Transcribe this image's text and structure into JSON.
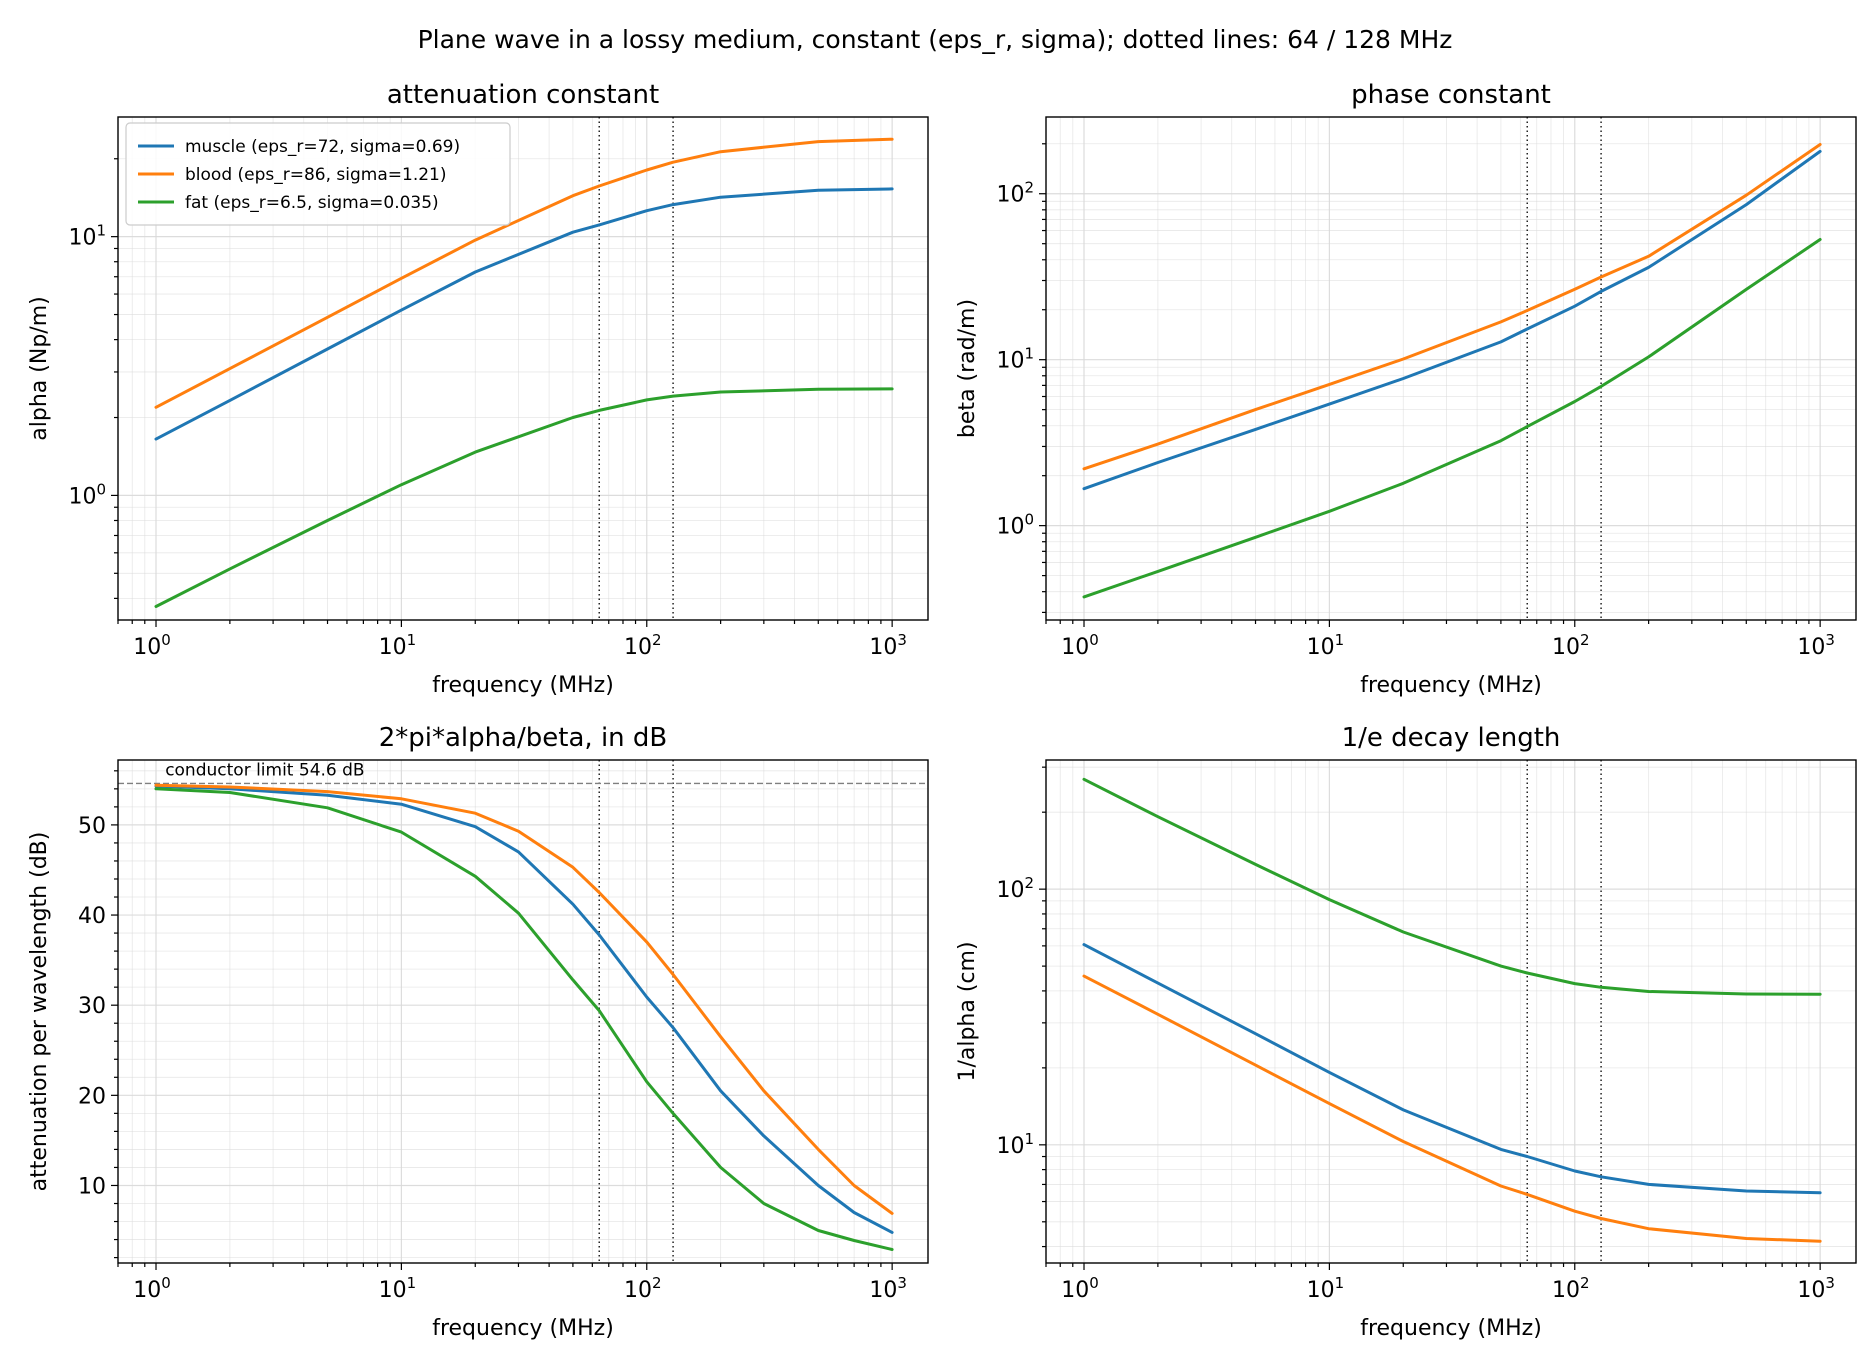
{
  "figure": {
    "suptitle": "Plane wave in a lossy medium, constant (eps_r, sigma); dotted lines: 64 / 128 MHz"
  },
  "colors": {
    "muscle": "#1f77b4",
    "blood": "#ff7f0e",
    "fat": "#2ca02c",
    "grid": "#d9d9d9",
    "ref_line": "#000000",
    "limit_line": "#7f7f7f"
  },
  "chart_data": [
    {
      "id": "attenuation",
      "type": "line",
      "title": "attenuation constant",
      "xlabel": "frequency (MHz)",
      "ylabel": "alpha (Np/m)",
      "xscale": "log",
      "yscale": "log",
      "xlim": [
        0.7,
        1400
      ],
      "ylim": [
        0.33,
        29
      ],
      "xticks": [
        {
          "base": "10",
          "exp": "0"
        },
        {
          "base": "10",
          "exp": "1"
        },
        {
          "base": "10",
          "exp": "2"
        },
        {
          "base": "10",
          "exp": "3"
        }
      ],
      "yticks": [
        {
          "base": "10",
          "exp": "0"
        },
        {
          "base": "10",
          "exp": "1"
        }
      ],
      "grid": "both major and minor",
      "vlines": [
        64,
        128
      ],
      "legend": {
        "position": "upper left",
        "entries": [
          {
            "series": "muscle",
            "label": "muscle (eps_r=72, sigma=0.69)"
          },
          {
            "series": "blood",
            "label": "blood (eps_r=86, sigma=1.21)"
          },
          {
            "series": "fat",
            "label": "fat (eps_r=6.5, sigma=0.035)"
          }
        ]
      },
      "series": [
        {
          "key": "muscle",
          "x": [
            1,
            2,
            5,
            10,
            20,
            50,
            64,
            100,
            128,
            200,
            500,
            1000
          ],
          "y": [
            1.65,
            2.33,
            3.68,
            5.2,
            7.3,
            10.4,
            11.1,
            12.6,
            13.3,
            14.2,
            15.1,
            15.3
          ]
        },
        {
          "key": "blood",
          "x": [
            1,
            2,
            5,
            10,
            20,
            50,
            64,
            100,
            128,
            200,
            500,
            1000
          ],
          "y": [
            2.19,
            3.09,
            4.88,
            6.9,
            9.7,
            14.4,
            15.7,
            18.1,
            19.4,
            21.3,
            23.3,
            23.8
          ]
        },
        {
          "key": "fat",
          "x": [
            1,
            2,
            5,
            10,
            20,
            50,
            64,
            100,
            128,
            200,
            500,
            1000
          ],
          "y": [
            0.372,
            0.52,
            0.8,
            1.1,
            1.47,
            2.0,
            2.13,
            2.34,
            2.42,
            2.51,
            2.57,
            2.58
          ]
        }
      ]
    },
    {
      "id": "phase",
      "type": "line",
      "title": "phase constant",
      "xlabel": "frequency (MHz)",
      "ylabel": "beta (rad/m)",
      "xscale": "log",
      "yscale": "log",
      "xlim": [
        0.7,
        1400
      ],
      "ylim": [
        0.27,
        290
      ],
      "xticks": [
        {
          "base": "10",
          "exp": "0"
        },
        {
          "base": "10",
          "exp": "1"
        },
        {
          "base": "10",
          "exp": "2"
        },
        {
          "base": "10",
          "exp": "3"
        }
      ],
      "yticks": [
        {
          "base": "10",
          "exp": "0"
        },
        {
          "base": "10",
          "exp": "1"
        },
        {
          "base": "10",
          "exp": "2"
        }
      ],
      "grid": "both major and minor",
      "vlines": [
        64,
        128
      ],
      "series": [
        {
          "key": "muscle",
          "x": [
            1,
            2,
            5,
            10,
            20,
            50,
            64,
            100,
            128,
            200,
            500,
            1000
          ],
          "y": [
            1.67,
            2.4,
            3.8,
            5.4,
            7.7,
            12.8,
            15.3,
            21.0,
            25.8,
            36.0,
            86.0,
            180.0
          ]
        },
        {
          "key": "blood",
          "x": [
            1,
            2,
            5,
            10,
            20,
            50,
            64,
            100,
            128,
            200,
            500,
            1000
          ],
          "y": [
            2.2,
            3.1,
            5.0,
            7.1,
            10.1,
            16.9,
            19.8,
            26.6,
            31.5,
            42.0,
            98.0,
            198.0
          ]
        },
        {
          "key": "fat",
          "x": [
            1,
            2,
            5,
            10,
            20,
            50,
            64,
            100,
            128,
            200,
            500,
            1000
          ],
          "y": [
            0.372,
            0.53,
            0.85,
            1.22,
            1.8,
            3.25,
            3.95,
            5.6,
            6.9,
            10.4,
            26.5,
            53.0
          ]
        }
      ]
    },
    {
      "id": "loss_db",
      "type": "line",
      "title": "2*pi*alpha/beta, in dB",
      "xlabel": "frequency (MHz)",
      "ylabel": "attenuation per wavelength (dB)",
      "xscale": "log",
      "yscale": "linear",
      "xlim": [
        0.7,
        1400
      ],
      "ylim": [
        1.4,
        57.2
      ],
      "xticks": [
        {
          "base": "10",
          "exp": "0"
        },
        {
          "base": "10",
          "exp": "1"
        },
        {
          "base": "10",
          "exp": "2"
        },
        {
          "base": "10",
          "exp": "3"
        }
      ],
      "yticks": [
        10,
        20,
        30,
        40,
        50
      ],
      "grid": "both major and minor",
      "vlines": [
        64,
        128
      ],
      "hline": {
        "y": 54.6,
        "label": "conductor limit 54.6 dB"
      },
      "series": [
        {
          "key": "muscle",
          "x": [
            1,
            2,
            5,
            10,
            20,
            30,
            50,
            64,
            100,
            128,
            200,
            300,
            500,
            700,
            1000
          ],
          "y": [
            54.3,
            54.0,
            53.3,
            52.3,
            49.8,
            47.0,
            41.2,
            37.8,
            30.9,
            27.5,
            20.5,
            15.5,
            10.0,
            7.0,
            4.8
          ]
        },
        {
          "key": "blood",
          "x": [
            1,
            2,
            5,
            10,
            20,
            30,
            50,
            64,
            100,
            128,
            200,
            300,
            500,
            700,
            1000
          ],
          "y": [
            54.4,
            54.2,
            53.7,
            52.9,
            51.3,
            49.3,
            45.3,
            42.5,
            37.0,
            33.4,
            26.5,
            20.5,
            14.0,
            10.0,
            6.9
          ]
        },
        {
          "key": "fat",
          "x": [
            1,
            2,
            5,
            10,
            20,
            30,
            50,
            64,
            100,
            128,
            200,
            300,
            500,
            700,
            1000
          ],
          "y": [
            54.0,
            53.6,
            51.9,
            49.2,
            44.3,
            40.2,
            32.8,
            29.4,
            21.5,
            18.0,
            12.0,
            8.0,
            5.0,
            3.9,
            2.9
          ]
        }
      ]
    },
    {
      "id": "decay_length",
      "type": "line",
      "title": "1/e decay length",
      "xlabel": "frequency (MHz)",
      "ylabel": "1/alpha (cm)",
      "xscale": "log",
      "yscale": "log",
      "xlim": [
        0.7,
        1400
      ],
      "ylim": [
        3.45,
        320
      ],
      "xticks": [
        {
          "base": "10",
          "exp": "0"
        },
        {
          "base": "10",
          "exp": "1"
        },
        {
          "base": "10",
          "exp": "2"
        },
        {
          "base": "10",
          "exp": "3"
        }
      ],
      "yticks": [
        {
          "base": "10",
          "exp": "1"
        },
        {
          "base": "10",
          "exp": "2"
        }
      ],
      "grid": "both major and minor",
      "vlines": [
        64,
        128
      ],
      "series": [
        {
          "key": "muscle",
          "x": [
            1,
            2,
            5,
            10,
            20,
            50,
            64,
            100,
            128,
            200,
            500,
            1000
          ],
          "y": [
            60.7,
            42.9,
            27.2,
            19.2,
            13.7,
            9.6,
            9.0,
            7.9,
            7.5,
            7.0,
            6.6,
            6.5
          ]
        },
        {
          "key": "blood",
          "x": [
            1,
            2,
            5,
            10,
            20,
            50,
            64,
            100,
            128,
            200,
            500,
            1000
          ],
          "y": [
            45.7,
            32.4,
            20.5,
            14.5,
            10.3,
            6.9,
            6.4,
            5.5,
            5.15,
            4.7,
            4.3,
            4.2
          ]
        },
        {
          "key": "fat",
          "x": [
            1,
            2,
            5,
            10,
            20,
            50,
            64,
            100,
            128,
            200,
            500,
            1000
          ],
          "y": [
            269.0,
            192.0,
            125.0,
            91.0,
            68.0,
            50.0,
            47.0,
            42.7,
            41.3,
            39.8,
            38.9,
            38.8
          ]
        }
      ]
    }
  ]
}
